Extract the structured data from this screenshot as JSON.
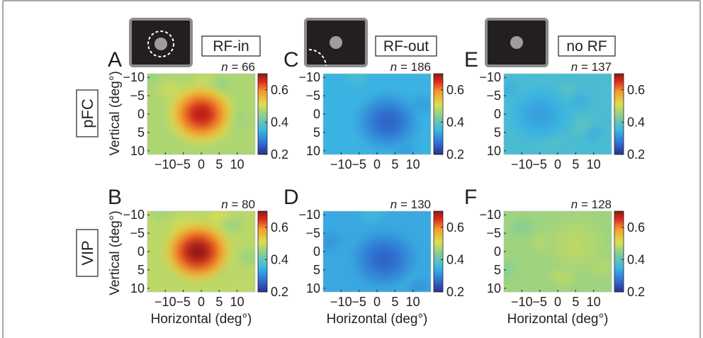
{
  "colors": {
    "frame": "#8a8a8a",
    "icon_bg": "#231f20",
    "icon_border": "#8c8c8c",
    "fixation": "#9d9d9d",
    "rf_outline": "#ffffff",
    "colormap": [
      "#2b2f8f",
      "#2f6fd2",
      "#3bb6e3",
      "#7ccd9b",
      "#dede4c",
      "#f59a2a",
      "#df2a1f",
      "#8a1a10"
    ]
  },
  "icons": [
    "rf-ring-icon",
    "rf-partial-ring-icon",
    "fixation-dot-icon"
  ],
  "conditions": [
    {
      "label": "RF-in",
      "rf": "center"
    },
    {
      "label": "RF-out",
      "rf": "corner"
    },
    {
      "label": "no RF",
      "rf": "none"
    }
  ],
  "rows": [
    {
      "region": "pFC"
    },
    {
      "region": "VIP"
    }
  ],
  "axes": {
    "ylabel": "Vertical (deg°)",
    "xlabel": "Horizontal (deg°)",
    "y_ticks": [
      "−10",
      "−5",
      "0",
      "5",
      "10"
    ],
    "x_ticks": [
      "−10",
      "−5",
      "0",
      "5",
      "10"
    ],
    "colorbar_ticks": [
      "0.6",
      "0.4",
      "0.2"
    ]
  },
  "panels": [
    {
      "letter": "A",
      "n_prefix": "n",
      "n_value": "= 66"
    },
    {
      "letter": "C",
      "n_prefix": "n",
      "n_value": "= 186"
    },
    {
      "letter": "E",
      "n_prefix": "n",
      "n_value": "= 137"
    },
    {
      "letter": "B",
      "n_prefix": "n",
      "n_value": "= 80"
    },
    {
      "letter": "D",
      "n_prefix": "n",
      "n_value": "= 130"
    },
    {
      "letter": "F",
      "n_prefix": "n",
      "n_value": "= 128"
    }
  ],
  "chart_data": [
    {
      "type": "heatmap",
      "panel": "A",
      "region": "pFC",
      "condition": "RF-in",
      "n": 66,
      "x_range": [
        -15,
        15
      ],
      "y_range": [
        -11,
        11
      ],
      "clim": [
        0.2,
        0.7
      ],
      "background": 0.45,
      "peaks": [
        {
          "x": 0,
          "y": 0,
          "value": 0.66
        }
      ]
    },
    {
      "type": "heatmap",
      "panel": "C",
      "region": "pFC",
      "condition": "RF-out",
      "n": 186,
      "x_range": [
        -15,
        15
      ],
      "y_range": [
        -11,
        11
      ],
      "clim": [
        0.2,
        0.7
      ],
      "background": 0.34,
      "peaks": [
        {
          "x": 3,
          "y": 2,
          "value": 0.26
        }
      ]
    },
    {
      "type": "heatmap",
      "panel": "E",
      "region": "pFC",
      "condition": "no RF",
      "n": 137,
      "x_range": [
        -15,
        15
      ],
      "y_range": [
        -11,
        11
      ],
      "clim": [
        0.2,
        0.7
      ],
      "background": 0.36,
      "peaks": [
        {
          "x": -5,
          "y": 0,
          "value": 0.32
        }
      ]
    },
    {
      "type": "heatmap",
      "panel": "B",
      "region": "VIP",
      "condition": "RF-in",
      "n": 80,
      "x_range": [
        -15,
        15
      ],
      "y_range": [
        -11,
        11
      ],
      "clim": [
        0.2,
        0.7
      ],
      "background": 0.46,
      "peaks": [
        {
          "x": -1,
          "y": 0,
          "value": 0.69
        }
      ]
    },
    {
      "type": "heatmap",
      "panel": "D",
      "region": "VIP",
      "condition": "RF-out",
      "n": 130,
      "x_range": [
        -15,
        15
      ],
      "y_range": [
        -11,
        11
      ],
      "clim": [
        0.2,
        0.7
      ],
      "background": 0.33,
      "peaks": [
        {
          "x": 2,
          "y": 2,
          "value": 0.26
        }
      ]
    },
    {
      "type": "heatmap",
      "panel": "F",
      "region": "VIP",
      "condition": "no RF",
      "n": 128,
      "x_range": [
        -15,
        15
      ],
      "y_range": [
        -11,
        11
      ],
      "clim": [
        0.2,
        0.7
      ],
      "background": 0.44,
      "peaks": [
        {
          "x": 5,
          "y": -2,
          "value": 0.46
        }
      ]
    }
  ]
}
